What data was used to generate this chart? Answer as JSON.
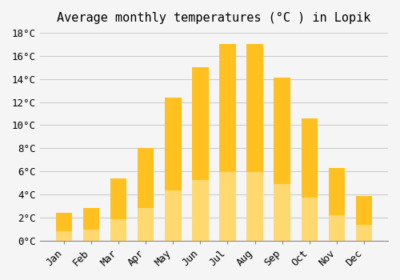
{
  "title": "Average monthly temperatures (°C ) in Lopik",
  "months": [
    "Jan",
    "Feb",
    "Mar",
    "Apr",
    "May",
    "Jun",
    "Jul",
    "Aug",
    "Sep",
    "Oct",
    "Nov",
    "Dec"
  ],
  "values": [
    2.4,
    2.8,
    5.4,
    8.0,
    12.4,
    15.0,
    17.0,
    17.0,
    14.1,
    10.6,
    6.3,
    3.9
  ],
  "bar_color_top": "#FFC020",
  "bar_color_bottom": "#FFD870",
  "background_color": "#F5F5F5",
  "grid_color": "#CCCCCC",
  "ylim": [
    0,
    18
  ],
  "yticks": [
    0,
    2,
    4,
    6,
    8,
    10,
    12,
    14,
    16,
    18
  ],
  "title_fontsize": 11,
  "tick_fontsize": 9,
  "font_family": "monospace"
}
